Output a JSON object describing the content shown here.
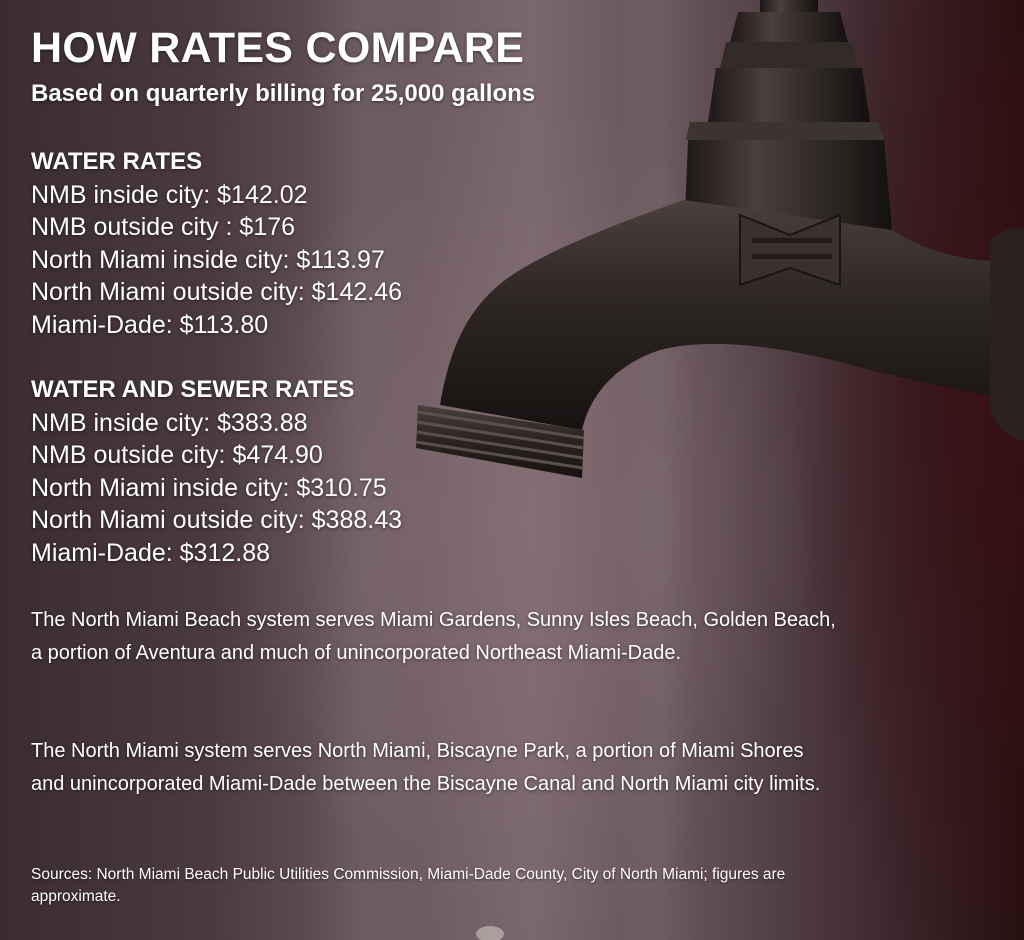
{
  "title": "HOW RATES COMPARE",
  "subtitle": "Based on quarterly billing for 25,000 gallons",
  "water_rates": {
    "heading": "WATER RATES",
    "items": [
      "NMB inside city: $142.02",
      "NMB outside city : $176",
      "North Miami inside city: $113.97",
      "North Miami outside city: $142.46",
      "Miami-Dade: $113.80"
    ]
  },
  "water_sewer_rates": {
    "heading": "WATER AND SEWER RATES",
    "items": [
      "NMB inside city: $383.88",
      "NMB outside city: $474.90",
      "North Miami inside city: $310.75",
      "North Miami outside city: $388.43",
      "Miami-Dade: $312.88"
    ]
  },
  "paragraphs": {
    "nmb_system": "The North Miami Beach system serves Miami Gardens, Sunny Isles Beach, Golden Beach, a portion of Aventura and much of unincorporated Northeast Miami-Dade.",
    "nm_system": "The North Miami system serves North Miami, Biscayne Park, a portion of Miami Shores and unincorporated Miami-Dade between the Biscayne Canal and North Miami city limits."
  },
  "sources": "Sources: North Miami Beach Public Utilities Commission, Miami-Dade County, City of North Miami; figures are approximate.",
  "background": {
    "photo_subject": "faucet-icon",
    "colors": {
      "dark": "#24100f",
      "mid": "#6c5a60",
      "metal": "#2f2a28"
    }
  }
}
